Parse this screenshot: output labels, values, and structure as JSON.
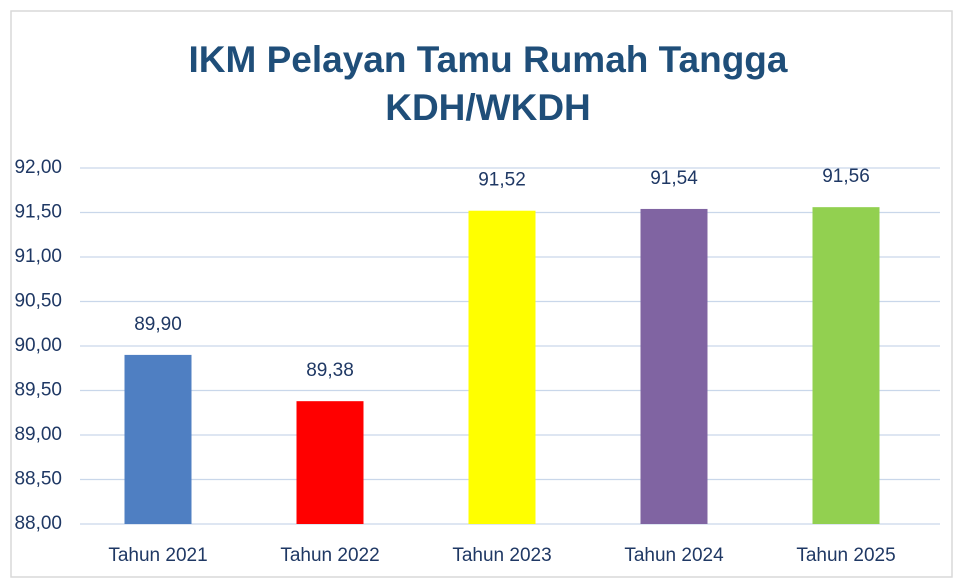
{
  "chart_data": {
    "type": "bar",
    "title": [
      "IKM Pelayan Tamu Rumah Tangga",
      "KDH/WKDH"
    ],
    "categories": [
      "Tahun 2021",
      "Tahun 2022",
      "Tahun 2023",
      "Tahun 2024",
      "Tahun 2025"
    ],
    "values": [
      89.9,
      89.38,
      91.52,
      91.54,
      91.56
    ],
    "value_labels": [
      "89,90",
      "89,38",
      "91,52",
      "91,54",
      "91,56"
    ],
    "colors": [
      "#4f7fc2",
      "#ff0000",
      "#ffff00",
      "#8064a2",
      "#92d050"
    ],
    "ylim": [
      88,
      92
    ],
    "yticks": [
      {
        "value": 88,
        "label": "88,00"
      },
      {
        "value": 88.5,
        "label": "88,50"
      },
      {
        "value": 89,
        "label": "89,00"
      },
      {
        "value": 89.5,
        "label": "89,50"
      },
      {
        "value": 90,
        "label": "90,00"
      },
      {
        "value": 90.5,
        "label": "90,50"
      },
      {
        "value": 91,
        "label": "91,00"
      },
      {
        "value": 91.5,
        "label": "91,50"
      },
      {
        "value": 92,
        "label": "92,00"
      }
    ],
    "grid": true
  }
}
